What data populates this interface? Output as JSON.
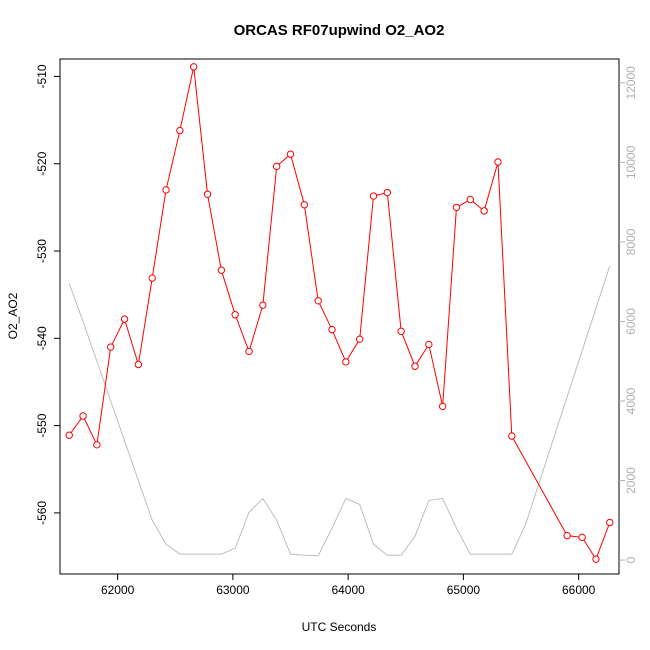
{
  "chart_data": {
    "type": "line",
    "title": "ORCAS RF07upwind O2_AO2",
    "xlabel": "UTC Seconds",
    "ylabel": "O2_AO2",
    "xlim": [
      61500,
      66350
    ],
    "ylim": [
      -567,
      -508
    ],
    "y2lim": [
      -350,
      12600
    ],
    "x_ticks": [
      62000,
      63000,
      64000,
      65000,
      66000
    ],
    "y_ticks": [
      -510,
      -520,
      -530,
      -540,
      -550,
      -560
    ],
    "y2_ticks": [
      0,
      2000,
      4000,
      6000,
      8000,
      10000,
      12000
    ],
    "colors": {
      "primary": "#ff0000",
      "secondary": "#bebebe"
    },
    "series": [
      {
        "axis": "left",
        "style": "line-points",
        "x": [
          61580,
          61700,
          61820,
          61940,
          62060,
          62180,
          62300,
          62420,
          62540,
          62660,
          62780,
          62900,
          63020,
          63140,
          63260,
          63380,
          63500,
          63620,
          63740,
          63860,
          63980,
          64100,
          64220,
          64340,
          64460,
          64580,
          64700,
          64820,
          64940,
          65060,
          65180,
          65300,
          65420,
          65900,
          66030,
          66150,
          66270
        ],
        "values": [
          -551.1,
          -548.9,
          -552.2,
          -541.0,
          -537.8,
          -543.0,
          -533.1,
          -523.0,
          -516.2,
          -508.9,
          -523.5,
          -532.2,
          -537.3,
          -541.5,
          -536.2,
          -520.3,
          -518.9,
          -524.7,
          -535.7,
          -539.0,
          -542.7,
          -540.1,
          -523.7,
          -523.3,
          -539.2,
          -543.2,
          -540.7,
          -547.8,
          -525.0,
          -524.1,
          -525.4,
          -519.8,
          -551.2,
          -562.6,
          -562.8,
          -565.3,
          -561.1
        ]
      },
      {
        "axis": "right",
        "style": "line",
        "x": [
          61580,
          61700,
          61820,
          61940,
          62060,
          62180,
          62300,
          62420,
          62540,
          62660,
          62780,
          62900,
          63020,
          63140,
          63260,
          63380,
          63500,
          63620,
          63740,
          63860,
          63980,
          64100,
          64220,
          64340,
          64460,
          64580,
          64700,
          64820,
          64940,
          65060,
          65180,
          65300,
          65420,
          65540,
          66270
        ],
        "values": [
          6950,
          6000,
          5000,
          4000,
          3000,
          2000,
          1000,
          400,
          150,
          150,
          150,
          150,
          300,
          1200,
          1550,
          1000,
          150,
          120,
          110,
          800,
          1550,
          1400,
          400,
          120,
          120,
          600,
          1500,
          1550,
          800,
          150,
          150,
          150,
          150,
          900,
          7400
        ]
      }
    ]
  }
}
